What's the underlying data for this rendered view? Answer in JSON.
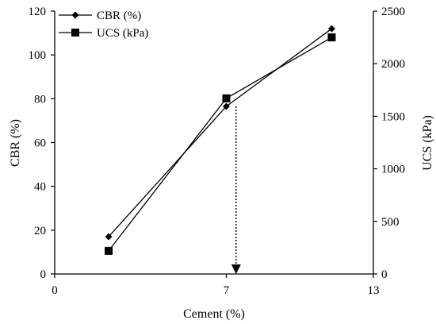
{
  "chart_data": {
    "type": "line",
    "xlabel": "Cement (%)",
    "ylabel_left": "CBR (%)",
    "ylabel_right": "UCS (kPa)",
    "xlim": [
      0,
      13
    ],
    "x_ticks": [
      "0",
      "7",
      "13"
    ],
    "ylim_left": [
      0,
      120
    ],
    "left_ticks": [
      "0",
      "20",
      "40",
      "60",
      "80",
      "100",
      "120"
    ],
    "ylim_right": [
      0,
      2500
    ],
    "right_ticks": [
      "0",
      "500",
      "1000",
      "1500",
      "2000",
      "2500"
    ],
    "grid": false,
    "legend_position": "top-left",
    "series": [
      {
        "name": "CBR (%)",
        "axis": "left",
        "marker": "diamond",
        "x": [
          2.2,
          7.0,
          11.3
        ],
        "y": [
          17,
          76.5,
          112
        ]
      },
      {
        "name": "UCS (kPa)",
        "axis": "right",
        "marker": "square",
        "x": [
          2.2,
          7.0,
          11.3
        ],
        "y": [
          220,
          1670,
          2250
        ]
      }
    ],
    "annotation": {
      "type": "dashed-arrow",
      "x": 7.4,
      "from_left_y": 76.5,
      "to_left_y": 0
    }
  }
}
